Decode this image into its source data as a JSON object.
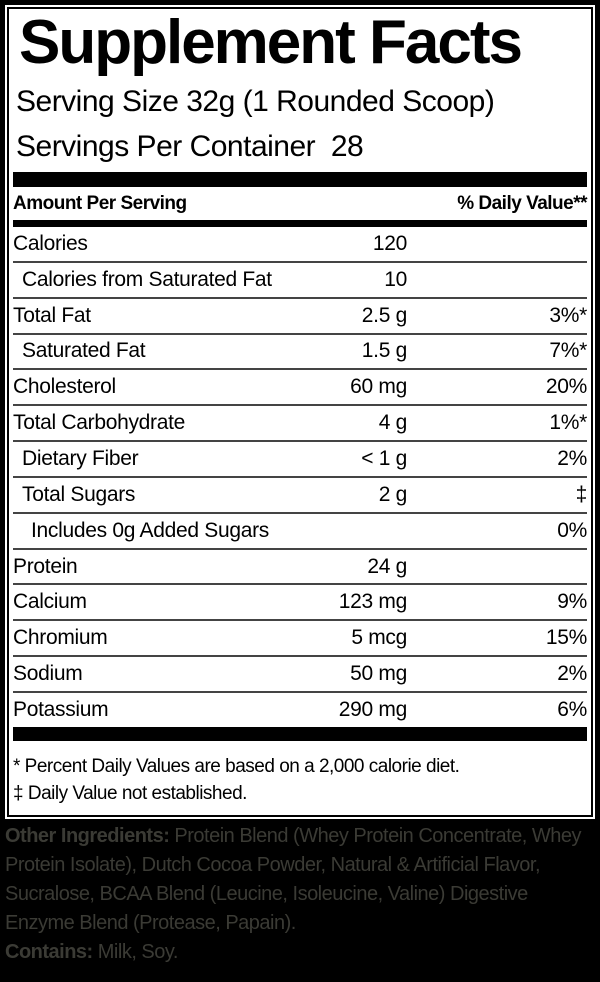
{
  "title": "Supplement Facts",
  "serving": {
    "size_line": "Serving Size 32g (1 Rounded Scoop)",
    "per_container_line": "Servings Per Container  28"
  },
  "table": {
    "header_left": "Amount Per Serving",
    "header_right": "% Daily Value**",
    "rows": [
      {
        "label": "Calories",
        "indent": 0,
        "amount": "120",
        "dv": ""
      },
      {
        "label": "Calories from Saturated Fat",
        "indent": 1,
        "amount": "10",
        "dv": ""
      },
      {
        "label": "Total Fat",
        "indent": 0,
        "amount": "2.5 g",
        "dv": "3%*"
      },
      {
        "label": "Saturated Fat",
        "indent": 1,
        "amount": "1.5 g",
        "dv": "7%*"
      },
      {
        "label": "Cholesterol",
        "indent": 0,
        "amount": "60 mg",
        "dv": "20%"
      },
      {
        "label": "Total Carbohydrate",
        "indent": 0,
        "amount": "4 g",
        "dv": "1%*"
      },
      {
        "label": "Dietary Fiber",
        "indent": 1,
        "amount": "< 1 g",
        "dv": "2%"
      },
      {
        "label": "Total Sugars",
        "indent": 1,
        "amount": "2 g",
        "dv": "‡"
      },
      {
        "label": "Includes 0g Added Sugars",
        "indent": 2,
        "amount": "",
        "dv": "0%"
      },
      {
        "label": "Protein",
        "indent": 0,
        "amount": "24 g",
        "dv": ""
      },
      {
        "label": "Calcium",
        "indent": 0,
        "amount": "123 mg",
        "dv": "9%"
      },
      {
        "label": "Chromium",
        "indent": 0,
        "amount": "5 mcg",
        "dv": "15%"
      },
      {
        "label": "Sodium",
        "indent": 0,
        "amount": "50 mg",
        "dv": "2%"
      },
      {
        "label": "Potassium",
        "indent": 0,
        "amount": "290 mg",
        "dv": "6%"
      }
    ]
  },
  "footnotes": [
    "* Percent Daily Values are based on a 2,000 calorie diet.",
    "‡ Daily Value not established."
  ],
  "other_ingredients": {
    "label": "Other Ingredients:",
    "text": " Protein Blend (Whey Protein Concentrate, Whey Protein Isolate), Dutch Cocoa Powder, Natural & Artificial Flavor, Sucralose, BCAA Blend (Leucine, Isoleucine, Valine) Digestive Enzyme Blend (Protease, Papain)."
  },
  "contains": {
    "label": "Contains:",
    "text": " Milk, Soy."
  },
  "colors": {
    "page_bg": "#000000",
    "panel_bg": "#ffffff",
    "panel_text": "#000000",
    "separator": "#444444",
    "footer_text": "#3b3b35"
  }
}
